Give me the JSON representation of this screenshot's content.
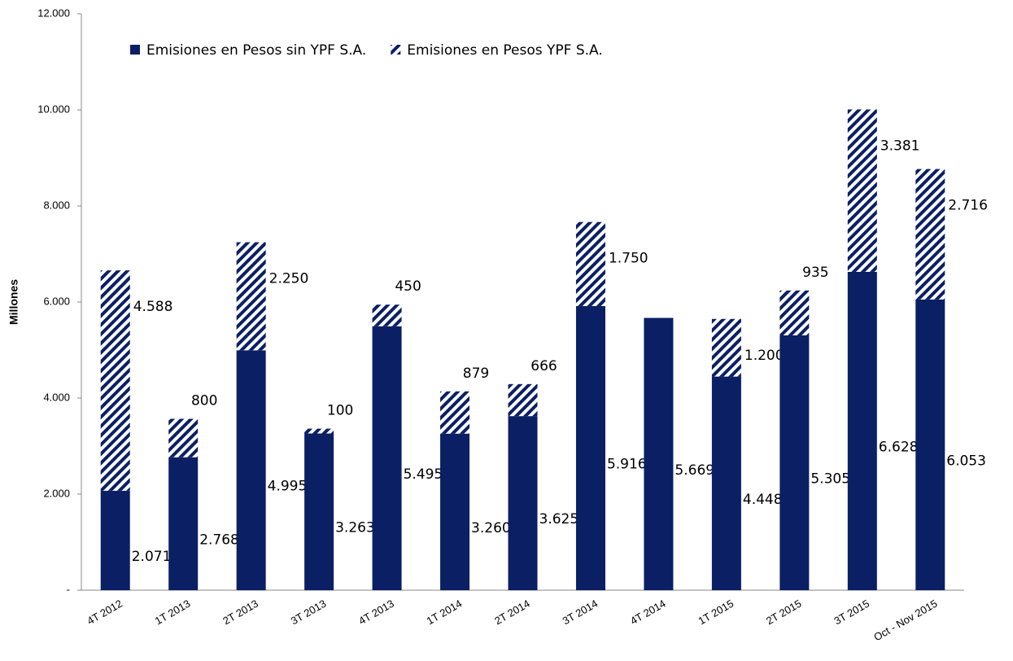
{
  "chart_data": {
    "type": "stacked-bar",
    "y_label": "Millones",
    "categories": [
      "4T 2012",
      "1T 2013",
      "2T 2013",
      "3T 2013",
      "4T 2013",
      "1T 2014",
      "2T 2014",
      "3T 2014",
      "4T 2014",
      "1T 2015",
      "2T 2015",
      "3T 2015",
      "Oct - Nov 2015"
    ],
    "series": [
      {
        "name": "Emisiones en Pesos sin YPF S.A.",
        "color": "#0b1f65",
        "pattern": "solid",
        "values": [
          2071,
          2768,
          4995,
          3263,
          5495,
          3260,
          3625,
          5916,
          5669,
          4448,
          5305,
          6628,
          6053
        ],
        "value_labels": [
          "2.071",
          "2.768",
          "4.995",
          "3.263",
          "5.495",
          "3.260",
          "3.625",
          "5.916",
          "5.669",
          "4.448",
          "5.305",
          "6.628",
          "6.053"
        ]
      },
      {
        "name": "Emisiones en Pesos YPF S.A.",
        "color": "#0b1f65",
        "pattern": "hatch",
        "values": [
          4588,
          800,
          2250,
          100,
          450,
          879,
          666,
          1750,
          null,
          1200,
          935,
          3381,
          2716
        ],
        "value_labels": [
          "4.588",
          "800",
          "2.250",
          "100",
          "450",
          "879",
          "666",
          "1.750",
          null,
          "1.200",
          "935",
          "3.381",
          "2.716"
        ]
      }
    ],
    "ylim": [
      0,
      12000
    ],
    "yticks": [
      {
        "value": 0,
        "label": "-"
      },
      {
        "value": 2000,
        "label": "2.000"
      },
      {
        "value": 4000,
        "label": "4.000"
      },
      {
        "value": 6000,
        "label": "6.000"
      },
      {
        "value": 8000,
        "label": "8.000"
      },
      {
        "value": 10000,
        "label": "10.000"
      },
      {
        "value": 12000,
        "label": "12.000"
      }
    ],
    "legend": "top"
  }
}
